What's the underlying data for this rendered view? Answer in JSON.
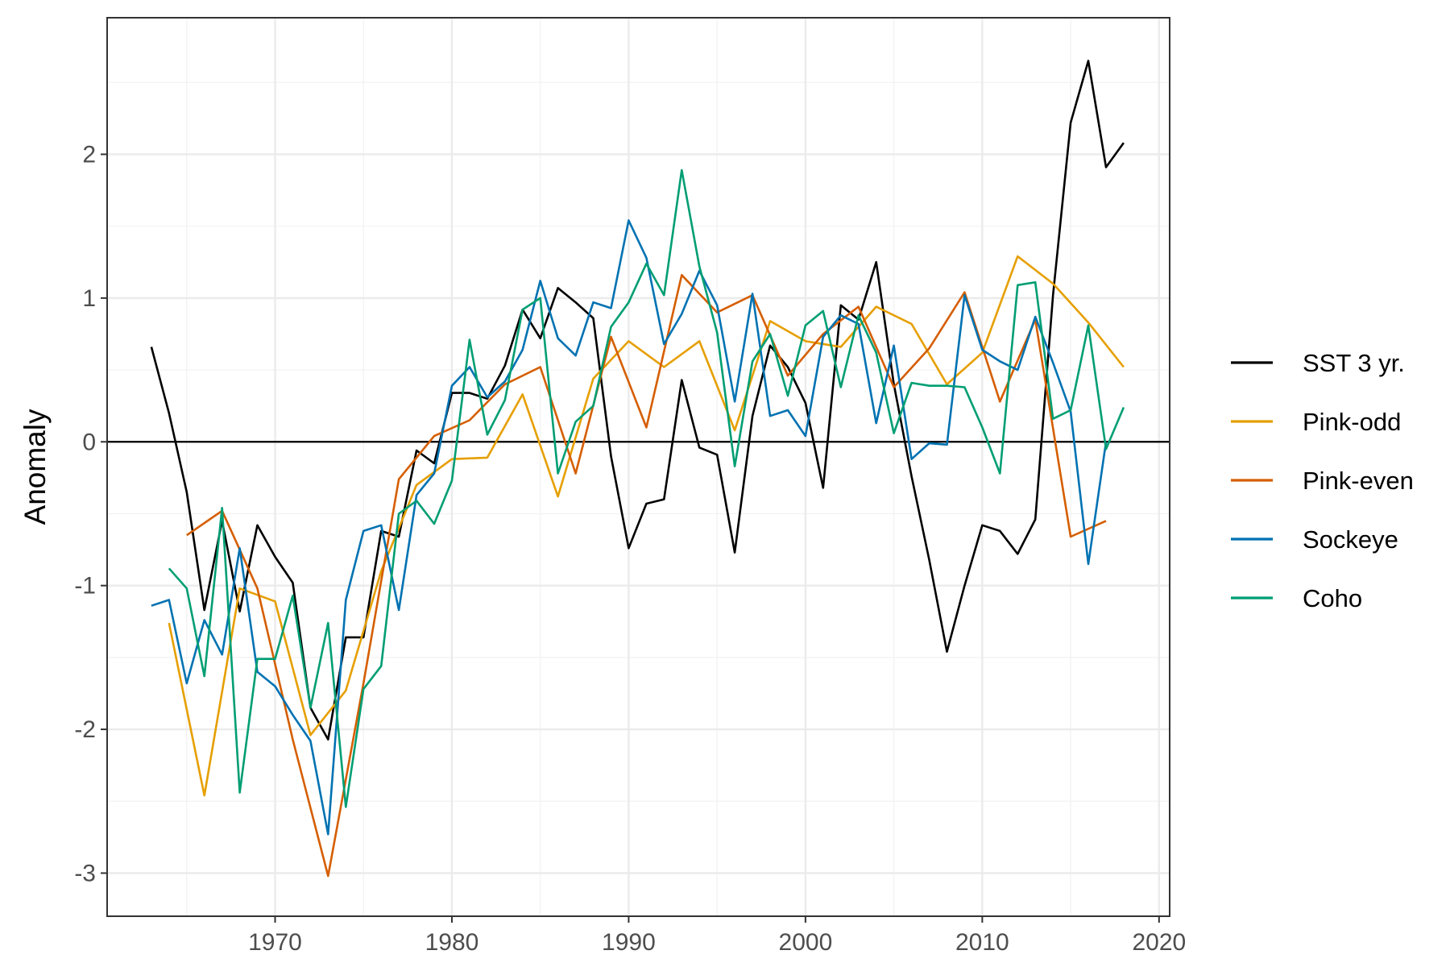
{
  "chart_data": {
    "type": "line",
    "title": "",
    "xlabel": "",
    "ylabel": "Anomaly",
    "xlim": [
      1960.5,
      2020.6
    ],
    "ylim": [
      -3.3,
      2.95
    ],
    "x_ticks": [
      1970,
      1980,
      1990,
      2000,
      2010,
      2020
    ],
    "y_ticks": [
      -3,
      -2,
      -1,
      0,
      1,
      2
    ],
    "x_tick_labels": [
      "1970",
      "1980",
      "1990",
      "2000",
      "2010",
      "2020"
    ],
    "y_tick_labels": [
      "-3",
      "-2",
      "-1",
      "0",
      "1",
      "2"
    ],
    "grid": true,
    "reference_line": 0,
    "legend_position": "right",
    "series": [
      {
        "name": "SST 3 yr.",
        "color": "#000000",
        "x": [
          1963,
          1964,
          1965,
          1966,
          1967,
          1968,
          1969,
          1970,
          1971,
          1972,
          1973,
          1974,
          1975,
          1976,
          1977,
          1978,
          1979,
          1980,
          1981,
          1982,
          1983,
          1984,
          1985,
          1986,
          1987,
          1988,
          1989,
          1990,
          1991,
          1992,
          1993,
          1994,
          1995,
          1996,
          1997,
          1998,
          1999,
          2000,
          2001,
          2002,
          2003,
          2004,
          2005,
          2006,
          2007,
          2008,
          2009,
          2010,
          2011,
          2012,
          2013,
          2014,
          2015,
          2016,
          2017,
          2018
        ],
        "values": [
          0.66,
          0.2,
          -0.35,
          -1.17,
          -0.55,
          -1.18,
          -0.58,
          -0.8,
          -0.98,
          -1.85,
          -2.07,
          -1.36,
          -1.36,
          -0.62,
          -0.66,
          -0.06,
          -0.15,
          0.34,
          0.34,
          0.3,
          0.53,
          0.92,
          0.72,
          1.07,
          0.97,
          0.86,
          -0.1,
          -0.74,
          -0.43,
          -0.4,
          0.43,
          -0.04,
          -0.09,
          -0.77,
          0.18,
          0.67,
          0.52,
          0.27,
          -0.32,
          0.95,
          0.85,
          1.25,
          0.4,
          -0.24,
          -0.82,
          -1.46,
          -1.0,
          -0.58,
          -0.62,
          -0.78,
          -0.54,
          1.02,
          2.22,
          2.65,
          1.91,
          2.08
        ]
      },
      {
        "name": "Pink-odd",
        "color": "#E69F00",
        "x": [
          1964,
          1966,
          1968,
          1970,
          1972,
          1974,
          1976,
          1978,
          1980,
          1982,
          1984,
          1986,
          1988,
          1990,
          1992,
          1994,
          1996,
          1998,
          2000,
          2002,
          2004,
          2006,
          2008,
          2010,
          2012,
          2014,
          2016,
          2018
        ],
        "values": [
          -1.26,
          -2.46,
          -1.02,
          -1.11,
          -2.04,
          -1.73,
          -0.9,
          -0.3,
          -0.12,
          -0.11,
          0.33,
          -0.38,
          0.44,
          0.7,
          0.52,
          0.7,
          0.08,
          0.84,
          0.7,
          0.66,
          0.94,
          0.82,
          0.4,
          0.62,
          1.29,
          1.1,
          0.83,
          0.52
        ]
      },
      {
        "name": "Pink-even",
        "color": "#D55E00",
        "x": [
          1965,
          1967,
          1969,
          1971,
          1973,
          1975,
          1977,
          1979,
          1981,
          1983,
          1985,
          1987,
          1989,
          1991,
          1993,
          1995,
          1997,
          1999,
          2001,
          2003,
          2005,
          2007,
          2009,
          2011,
          2013,
          2015,
          2017
        ],
        "values": [
          -0.65,
          -0.48,
          -1.02,
          -2.07,
          -3.02,
          -1.68,
          -0.26,
          0.04,
          0.15,
          0.4,
          0.52,
          -0.22,
          0.73,
          0.1,
          1.16,
          0.9,
          1.02,
          0.46,
          0.75,
          0.94,
          0.38,
          0.65,
          1.04,
          0.28,
          0.85,
          -0.66,
          -0.55
        ]
      },
      {
        "name": "Sockeye",
        "color": "#0072B2",
        "x": [
          1963,
          1964,
          1965,
          1966,
          1967,
          1968,
          1969,
          1970,
          1971,
          1972,
          1973,
          1974,
          1975,
          1976,
          1977,
          1978,
          1979,
          1980,
          1981,
          1982,
          1983,
          1984,
          1985,
          1986,
          1987,
          1988,
          1989,
          1990,
          1991,
          1992,
          1993,
          1994,
          1995,
          1996,
          1997,
          1998,
          1999,
          2000,
          2001,
          2002,
          2003,
          2004,
          2005,
          2006,
          2007,
          2008,
          2009,
          2010,
          2011,
          2012,
          2013,
          2014,
          2015,
          2016,
          2017
        ],
        "values": [
          -1.14,
          -1.1,
          -1.68,
          -1.24,
          -1.48,
          -0.74,
          -1.6,
          -1.7,
          -1.9,
          -2.08,
          -2.73,
          -1.1,
          -0.62,
          -0.58,
          -1.17,
          -0.37,
          -0.22,
          0.39,
          0.52,
          0.31,
          0.42,
          0.64,
          1.12,
          0.72,
          0.6,
          0.97,
          0.93,
          1.54,
          1.28,
          0.68,
          0.89,
          1.19,
          0.95,
          0.28,
          1.03,
          0.18,
          0.22,
          0.04,
          0.73,
          0.88,
          0.82,
          0.13,
          0.67,
          -0.12,
          -0.01,
          -0.02,
          1.02,
          0.64,
          0.56,
          0.5,
          0.87,
          0.55,
          0.21,
          -0.85,
          0.0
        ]
      },
      {
        "name": "Coho",
        "color": "#009E73",
        "x": [
          1964,
          1965,
          1966,
          1967,
          1968,
          1969,
          1970,
          1971,
          1972,
          1973,
          1974,
          1975,
          1976,
          1977,
          1978,
          1979,
          1980,
          1981,
          1982,
          1983,
          1984,
          1985,
          1986,
          1987,
          1988,
          1989,
          1990,
          1991,
          1992,
          1993,
          1994,
          1995,
          1996,
          1997,
          1998,
          1999,
          2000,
          2001,
          2002,
          2003,
          2004,
          2005,
          2006,
          2007,
          2008,
          2009,
          2010,
          2011,
          2012,
          2013,
          2014,
          2015,
          2016,
          2017,
          2018
        ],
        "values": [
          -0.88,
          -1.02,
          -1.63,
          -0.46,
          -2.44,
          -1.51,
          -1.51,
          -1.07,
          -1.85,
          -1.26,
          -2.54,
          -1.72,
          -1.56,
          -0.5,
          -0.41,
          -0.57,
          -0.27,
          0.71,
          0.05,
          0.29,
          0.92,
          1.0,
          -0.22,
          0.14,
          0.25,
          0.8,
          0.97,
          1.24,
          1.02,
          1.89,
          1.22,
          0.76,
          -0.17,
          0.56,
          0.75,
          0.32,
          0.81,
          0.91,
          0.38,
          0.88,
          0.62,
          0.06,
          0.41,
          0.39,
          0.39,
          0.38,
          0.1,
          -0.22,
          1.09,
          1.11,
          0.16,
          0.22,
          0.81,
          -0.05,
          0.24
        ]
      }
    ]
  }
}
